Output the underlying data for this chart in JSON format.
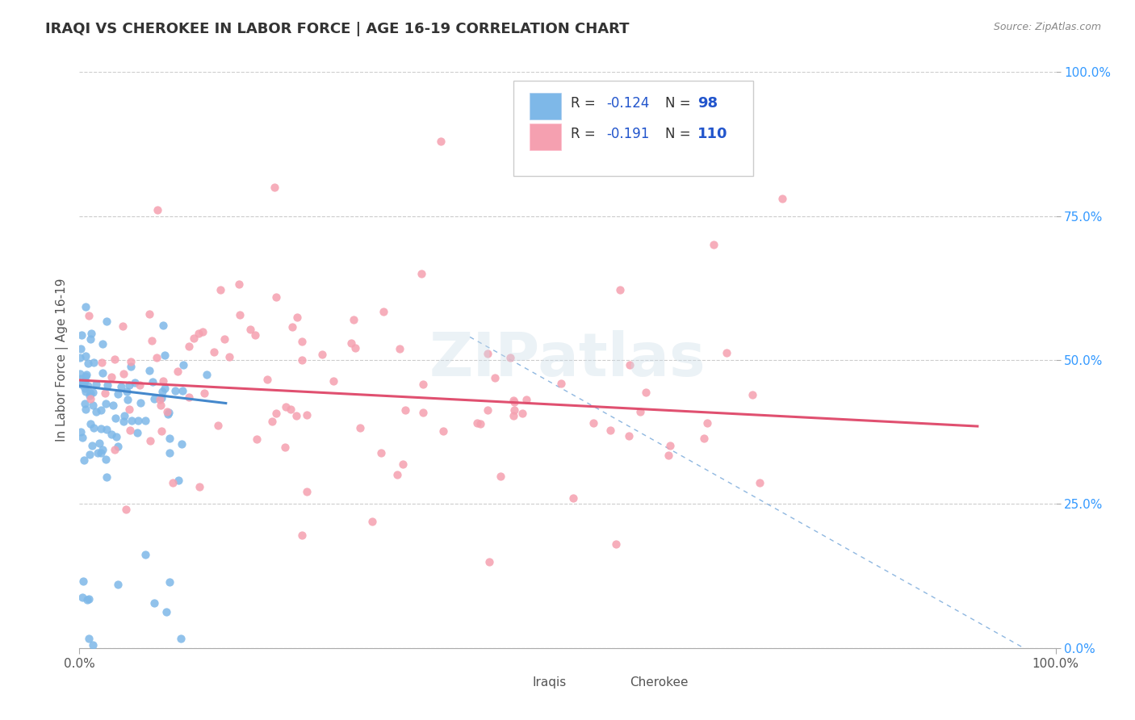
{
  "title": "IRAQI VS CHEROKEE IN LABOR FORCE | AGE 16-19 CORRELATION CHART",
  "source_text": "Source: ZipAtlas.com",
  "ylabel": "In Labor Force | Age 16-19",
  "xlim": [
    0.0,
    1.0
  ],
  "ylim": [
    0.0,
    1.0
  ],
  "xtick_labels": [
    "0.0%",
    "100.0%"
  ],
  "ytick_labels": [
    "0.0%",
    "25.0%",
    "50.0%",
    "75.0%",
    "100.0%"
  ],
  "ytick_vals": [
    0.0,
    0.25,
    0.5,
    0.75,
    1.0
  ],
  "iraqis_color": "#7eb8e8",
  "cherokee_color": "#f5a0b0",
  "iraqis_R": -0.124,
  "iraqis_N": 98,
  "cherokee_R": -0.191,
  "cherokee_N": 110,
  "trend_iraqis_color": "#4488cc",
  "trend_cherokee_color": "#e05070",
  "watermark": "ZIPatlas",
  "background_color": "#ffffff",
  "grid_color": "#cccccc",
  "title_color": "#333333",
  "label_color": "#555555",
  "iraqis_seed": 42,
  "cherokee_seed": 99
}
